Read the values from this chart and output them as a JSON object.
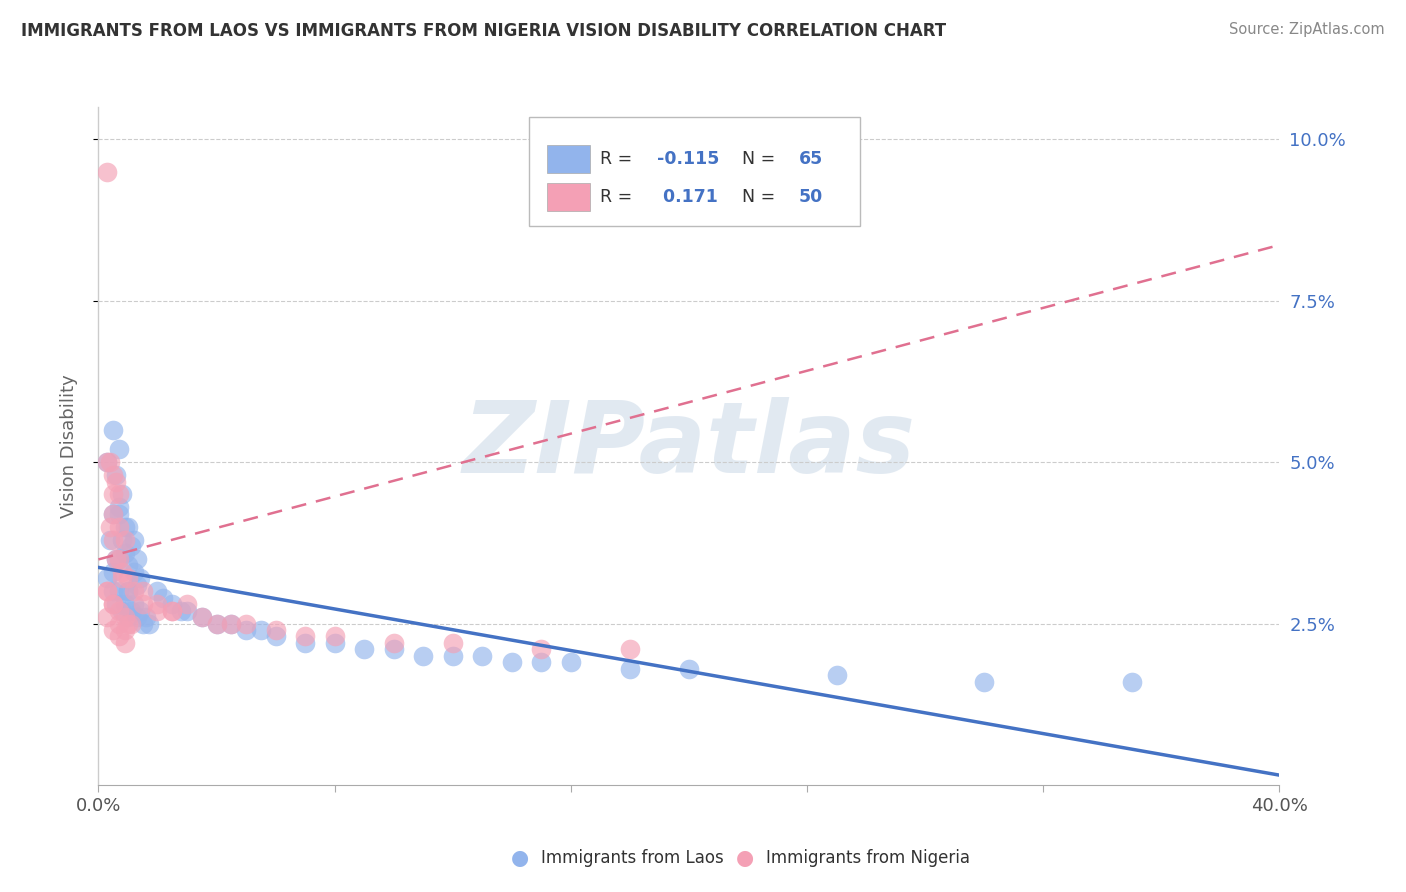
{
  "title": "IMMIGRANTS FROM LAOS VS IMMIGRANTS FROM NIGERIA VISION DISABILITY CORRELATION CHART",
  "source": "Source: ZipAtlas.com",
  "ylabel": "Vision Disability",
  "xlim": [
    0.0,
    0.4
  ],
  "ylim": [
    0.0,
    0.105
  ],
  "y_ticks": [
    0.025,
    0.05,
    0.075,
    0.1
  ],
  "y_tick_labels": [
    "2.5%",
    "5.0%",
    "7.5%",
    "10.0%"
  ],
  "x_ticks": [
    0.0,
    0.08,
    0.16,
    0.24,
    0.32,
    0.4
  ],
  "x_tick_labels": [
    "0.0%",
    "",
    "",
    "",
    "",
    "40.0%"
  ],
  "laos_R": -0.115,
  "laos_N": 65,
  "nigeria_R": 0.171,
  "nigeria_N": 50,
  "laos_color": "#92B4EC",
  "nigeria_color": "#F4A0B5",
  "laos_line_color": "#4472C4",
  "nigeria_line_color": "#E07090",
  "legend_label_laos": "Immigrants from Laos",
  "legend_label_nigeria": "Immigrants from Nigeria",
  "laos_scatter_x": [
    0.003,
    0.005,
    0.006,
    0.007,
    0.008,
    0.005,
    0.007,
    0.008,
    0.01,
    0.012,
    0.007,
    0.009,
    0.01,
    0.012,
    0.014,
    0.01,
    0.013,
    0.006,
    0.004,
    0.003,
    0.005,
    0.006,
    0.008,
    0.01,
    0.005,
    0.007,
    0.009,
    0.011,
    0.013,
    0.015,
    0.017,
    0.01,
    0.012,
    0.014,
    0.016,
    0.007,
    0.009,
    0.011,
    0.013,
    0.02,
    0.022,
    0.025,
    0.028,
    0.03,
    0.035,
    0.04,
    0.045,
    0.05,
    0.055,
    0.06,
    0.07,
    0.08,
    0.09,
    0.1,
    0.11,
    0.12,
    0.13,
    0.14,
    0.15,
    0.16,
    0.18,
    0.2,
    0.25,
    0.3,
    0.35
  ],
  "laos_scatter_y": [
    0.05,
    0.055,
    0.048,
    0.052,
    0.045,
    0.042,
    0.043,
    0.038,
    0.04,
    0.038,
    0.035,
    0.036,
    0.034,
    0.033,
    0.032,
    0.03,
    0.031,
    0.035,
    0.038,
    0.032,
    0.03,
    0.028,
    0.027,
    0.026,
    0.033,
    0.03,
    0.028,
    0.027,
    0.026,
    0.025,
    0.025,
    0.03,
    0.028,
    0.027,
    0.026,
    0.042,
    0.04,
    0.037,
    0.035,
    0.03,
    0.029,
    0.028,
    0.027,
    0.027,
    0.026,
    0.025,
    0.025,
    0.024,
    0.024,
    0.023,
    0.022,
    0.022,
    0.021,
    0.021,
    0.02,
    0.02,
    0.02,
    0.019,
    0.019,
    0.019,
    0.018,
    0.018,
    0.017,
    0.016,
    0.016
  ],
  "nigeria_scatter_x": [
    0.003,
    0.004,
    0.005,
    0.006,
    0.007,
    0.003,
    0.005,
    0.007,
    0.009,
    0.004,
    0.006,
    0.008,
    0.01,
    0.005,
    0.007,
    0.003,
    0.005,
    0.007,
    0.009,
    0.011,
    0.003,
    0.005,
    0.007,
    0.009,
    0.003,
    0.005,
    0.007,
    0.009,
    0.01,
    0.015,
    0.02,
    0.025,
    0.03,
    0.035,
    0.04,
    0.045,
    0.05,
    0.06,
    0.07,
    0.08,
    0.1,
    0.12,
    0.15,
    0.18,
    0.008,
    0.012,
    0.015,
    0.02,
    0.025,
    0.005
  ],
  "nigeria_scatter_y": [
    0.095,
    0.05,
    0.048,
    0.047,
    0.045,
    0.05,
    0.042,
    0.04,
    0.038,
    0.04,
    0.035,
    0.033,
    0.032,
    0.038,
    0.035,
    0.03,
    0.028,
    0.027,
    0.026,
    0.025,
    0.03,
    0.028,
    0.025,
    0.024,
    0.026,
    0.024,
    0.023,
    0.022,
    0.025,
    0.028,
    0.027,
    0.027,
    0.028,
    0.026,
    0.025,
    0.025,
    0.025,
    0.024,
    0.023,
    0.023,
    0.022,
    0.022,
    0.021,
    0.021,
    0.032,
    0.03,
    0.03,
    0.028,
    0.027,
    0.045
  ]
}
